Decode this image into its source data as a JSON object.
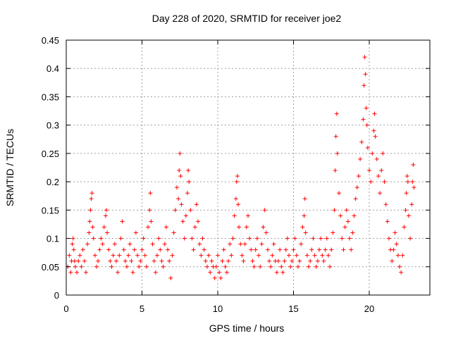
{
  "chart_data": {
    "type": "scatter",
    "title": "Day 228 of 2020, SRMTID for receiver joe2",
    "xlabel": "GPS time / hours",
    "ylabel": "SRMTID / TECUs",
    "xlim": [
      0,
      24
    ],
    "ylim": [
      0,
      0.45
    ],
    "xticks": [
      0,
      5,
      10,
      15,
      20
    ],
    "xtick_labels": [
      "0",
      "5",
      "10",
      "15",
      "20"
    ],
    "yticks": [
      0,
      0.05,
      0.1,
      0.15,
      0.2,
      0.25,
      0.3,
      0.35,
      0.4,
      0.45
    ],
    "ytick_labels": [
      "0",
      "0.05",
      "0.1",
      "0.15",
      "0.2",
      "0.25",
      "0.3",
      "0.35",
      "0.4",
      "0.45"
    ],
    "grid": true,
    "marker": "plus",
    "color": "#ff0000",
    "series": [
      {
        "name": "SRMTID",
        "points": [
          [
            0.1,
            0.05
          ],
          [
            0.2,
            0.07
          ],
          [
            0.3,
            0.04
          ],
          [
            0.35,
            0.06
          ],
          [
            0.4,
            0.09
          ],
          [
            0.45,
            0.1
          ],
          [
            0.5,
            0.08
          ],
          [
            0.55,
            0.06
          ],
          [
            0.6,
            0.05
          ],
          [
            0.7,
            0.04
          ],
          [
            0.8,
            0.06
          ],
          [
            0.9,
            0.07
          ],
          [
            1.0,
            0.05
          ],
          [
            1.1,
            0.08
          ],
          [
            1.2,
            0.06
          ],
          [
            1.3,
            0.04
          ],
          [
            1.4,
            0.09
          ],
          [
            1.5,
            0.11
          ],
          [
            1.55,
            0.13
          ],
          [
            1.6,
            0.15
          ],
          [
            1.65,
            0.17
          ],
          [
            1.7,
            0.18
          ],
          [
            1.75,
            0.12
          ],
          [
            1.8,
            0.1
          ],
          [
            1.9,
            0.07
          ],
          [
            2.0,
            0.05
          ],
          [
            2.1,
            0.06
          ],
          [
            2.2,
            0.08
          ],
          [
            2.3,
            0.1
          ],
          [
            2.4,
            0.09
          ],
          [
            2.5,
            0.12
          ],
          [
            2.6,
            0.14
          ],
          [
            2.65,
            0.15
          ],
          [
            2.7,
            0.11
          ],
          [
            2.8,
            0.08
          ],
          [
            2.9,
            0.06
          ],
          [
            3.0,
            0.05
          ],
          [
            3.1,
            0.07
          ],
          [
            3.2,
            0.09
          ],
          [
            3.3,
            0.06
          ],
          [
            3.4,
            0.04
          ],
          [
            3.5,
            0.07
          ],
          [
            3.6,
            0.1
          ],
          [
            3.7,
            0.13
          ],
          [
            3.8,
            0.08
          ],
          [
            3.9,
            0.06
          ],
          [
            4.0,
            0.05
          ],
          [
            4.1,
            0.07
          ],
          [
            4.2,
            0.09
          ],
          [
            4.3,
            0.06
          ],
          [
            4.4,
            0.04
          ],
          [
            4.5,
            0.08
          ],
          [
            4.6,
            0.11
          ],
          [
            4.7,
            0.07
          ],
          [
            4.8,
            0.05
          ],
          [
            4.9,
            0.06
          ],
          [
            5.0,
            0.08
          ],
          [
            5.1,
            0.1
          ],
          [
            5.2,
            0.07
          ],
          [
            5.3,
            0.05
          ],
          [
            5.4,
            0.12
          ],
          [
            5.5,
            0.15
          ],
          [
            5.55,
            0.18
          ],
          [
            5.6,
            0.13
          ],
          [
            5.7,
            0.09
          ],
          [
            5.8,
            0.06
          ],
          [
            5.9,
            0.04
          ],
          [
            6.0,
            0.07
          ],
          [
            6.1,
            0.1
          ],
          [
            6.2,
            0.08
          ],
          [
            6.3,
            0.06
          ],
          [
            6.4,
            0.05
          ],
          [
            6.5,
            0.09
          ],
          [
            6.6,
            0.12
          ],
          [
            6.7,
            0.08
          ],
          [
            6.8,
            0.06
          ],
          [
            6.9,
            0.03
          ],
          [
            7.0,
            0.07
          ],
          [
            7.1,
            0.11
          ],
          [
            7.2,
            0.15
          ],
          [
            7.3,
            0.19
          ],
          [
            7.4,
            0.17
          ],
          [
            7.45,
            0.22
          ],
          [
            7.5,
            0.25
          ],
          [
            7.55,
            0.21
          ],
          [
            7.6,
            0.16
          ],
          [
            7.7,
            0.13
          ],
          [
            7.8,
            0.1
          ],
          [
            7.9,
            0.14
          ],
          [
            8.0,
            0.18
          ],
          [
            8.05,
            0.22
          ],
          [
            8.1,
            0.2
          ],
          [
            8.2,
            0.15
          ],
          [
            8.3,
            0.1
          ],
          [
            8.4,
            0.08
          ],
          [
            8.5,
            0.12
          ],
          [
            8.6,
            0.16
          ],
          [
            8.7,
            0.13
          ],
          [
            8.8,
            0.09
          ],
          [
            8.9,
            0.07
          ],
          [
            9.0,
            0.1
          ],
          [
            9.1,
            0.08
          ],
          [
            9.2,
            0.06
          ],
          [
            9.3,
            0.05
          ],
          [
            9.4,
            0.07
          ],
          [
            9.5,
            0.04
          ],
          [
            9.6,
            0.06
          ],
          [
            9.7,
            0.05
          ],
          [
            9.8,
            0.03
          ],
          [
            9.9,
            0.05
          ],
          [
            10.0,
            0.07
          ],
          [
            10.1,
            0.04
          ],
          [
            10.2,
            0.03
          ],
          [
            10.3,
            0.06
          ],
          [
            10.4,
            0.08
          ],
          [
            10.5,
            0.05
          ],
          [
            10.6,
            0.04
          ],
          [
            10.7,
            0.06
          ],
          [
            10.8,
            0.09
          ],
          [
            10.9,
            0.07
          ],
          [
            11.0,
            0.1
          ],
          [
            11.1,
            0.14
          ],
          [
            11.2,
            0.17
          ],
          [
            11.25,
            0.2
          ],
          [
            11.3,
            0.21
          ],
          [
            11.35,
            0.16
          ],
          [
            11.4,
            0.12
          ],
          [
            11.5,
            0.09
          ],
          [
            11.6,
            0.07
          ],
          [
            11.7,
            0.06
          ],
          [
            11.8,
            0.09
          ],
          [
            11.9,
            0.12
          ],
          [
            12.0,
            0.14
          ],
          [
            12.1,
            0.1
          ],
          [
            12.2,
            0.08
          ],
          [
            12.3,
            0.06
          ],
          [
            12.4,
            0.05
          ],
          [
            12.5,
            0.08
          ],
          [
            12.6,
            0.1
          ],
          [
            12.7,
            0.07
          ],
          [
            12.8,
            0.05
          ],
          [
            12.9,
            0.09
          ],
          [
            13.0,
            0.12
          ],
          [
            13.1,
            0.15
          ],
          [
            13.2,
            0.11
          ],
          [
            13.3,
            0.08
          ],
          [
            13.4,
            0.06
          ],
          [
            13.5,
            0.05
          ],
          [
            13.6,
            0.07
          ],
          [
            13.7,
            0.09
          ],
          [
            13.8,
            0.06
          ],
          [
            13.9,
            0.04
          ],
          [
            14.0,
            0.06
          ],
          [
            14.1,
            0.08
          ],
          [
            14.2,
            0.05
          ],
          [
            14.3,
            0.04
          ],
          [
            14.4,
            0.06
          ],
          [
            14.5,
            0.08
          ],
          [
            14.6,
            0.1
          ],
          [
            14.7,
            0.07
          ],
          [
            14.8,
            0.05
          ],
          [
            14.9,
            0.06
          ],
          [
            15.0,
            0.08
          ],
          [
            15.1,
            0.1
          ],
          [
            15.2,
            0.07
          ],
          [
            15.3,
            0.05
          ],
          [
            15.4,
            0.06
          ],
          [
            15.5,
            0.09
          ],
          [
            15.6,
            0.12
          ],
          [
            15.7,
            0.14
          ],
          [
            15.75,
            0.17
          ],
          [
            15.8,
            0.11
          ],
          [
            15.9,
            0.07
          ],
          [
            16.0,
            0.05
          ],
          [
            16.1,
            0.06
          ],
          [
            16.2,
            0.08
          ],
          [
            16.3,
            0.1
          ],
          [
            16.4,
            0.07
          ],
          [
            16.5,
            0.05
          ],
          [
            16.6,
            0.06
          ],
          [
            16.7,
            0.08
          ],
          [
            16.8,
            0.1
          ],
          [
            16.9,
            0.07
          ],
          [
            17.0,
            0.06
          ],
          [
            17.1,
            0.08
          ],
          [
            17.2,
            0.1
          ],
          [
            17.3,
            0.07
          ],
          [
            17.4,
            0.05
          ],
          [
            17.5,
            0.08
          ],
          [
            17.6,
            0.11
          ],
          [
            17.7,
            0.15
          ],
          [
            17.75,
            0.22
          ],
          [
            17.8,
            0.28
          ],
          [
            17.85,
            0.32
          ],
          [
            17.9,
            0.25
          ],
          [
            18.0,
            0.18
          ],
          [
            18.1,
            0.14
          ],
          [
            18.2,
            0.1
          ],
          [
            18.3,
            0.08
          ],
          [
            18.4,
            0.12
          ],
          [
            18.5,
            0.15
          ],
          [
            18.6,
            0.13
          ],
          [
            18.7,
            0.1
          ],
          [
            18.8,
            0.08
          ],
          [
            18.9,
            0.11
          ],
          [
            19.0,
            0.14
          ],
          [
            19.1,
            0.17
          ],
          [
            19.2,
            0.19
          ],
          [
            19.3,
            0.21
          ],
          [
            19.4,
            0.24
          ],
          [
            19.5,
            0.27
          ],
          [
            19.6,
            0.31
          ],
          [
            19.65,
            0.37
          ],
          [
            19.7,
            0.42
          ],
          [
            19.75,
            0.39
          ],
          [
            19.8,
            0.33
          ],
          [
            19.85,
            0.3
          ],
          [
            19.9,
            0.26
          ],
          [
            20.0,
            0.22
          ],
          [
            20.1,
            0.2
          ],
          [
            20.2,
            0.25
          ],
          [
            20.3,
            0.29
          ],
          [
            20.35,
            0.32
          ],
          [
            20.4,
            0.28
          ],
          [
            20.5,
            0.24
          ],
          [
            20.6,
            0.21
          ],
          [
            20.7,
            0.18
          ],
          [
            20.8,
            0.22
          ],
          [
            20.9,
            0.25
          ],
          [
            21.0,
            0.2
          ],
          [
            21.1,
            0.16
          ],
          [
            21.2,
            0.13
          ],
          [
            21.3,
            0.1
          ],
          [
            21.4,
            0.08
          ],
          [
            21.5,
            0.06
          ],
          [
            21.6,
            0.08
          ],
          [
            21.7,
            0.11
          ],
          [
            21.8,
            0.09
          ],
          [
            21.9,
            0.07
          ],
          [
            22.0,
            0.05
          ],
          [
            22.1,
            0.04
          ],
          [
            22.2,
            0.07
          ],
          [
            22.3,
            0.12
          ],
          [
            22.4,
            0.15
          ],
          [
            22.45,
            0.18
          ],
          [
            22.5,
            0.21
          ],
          [
            22.55,
            0.2
          ],
          [
            22.6,
            0.14
          ],
          [
            22.7,
            0.1
          ],
          [
            22.8,
            0.16
          ],
          [
            22.85,
            0.2
          ],
          [
            22.9,
            0.23
          ],
          [
            22.95,
            0.19
          ]
        ]
      }
    ]
  }
}
